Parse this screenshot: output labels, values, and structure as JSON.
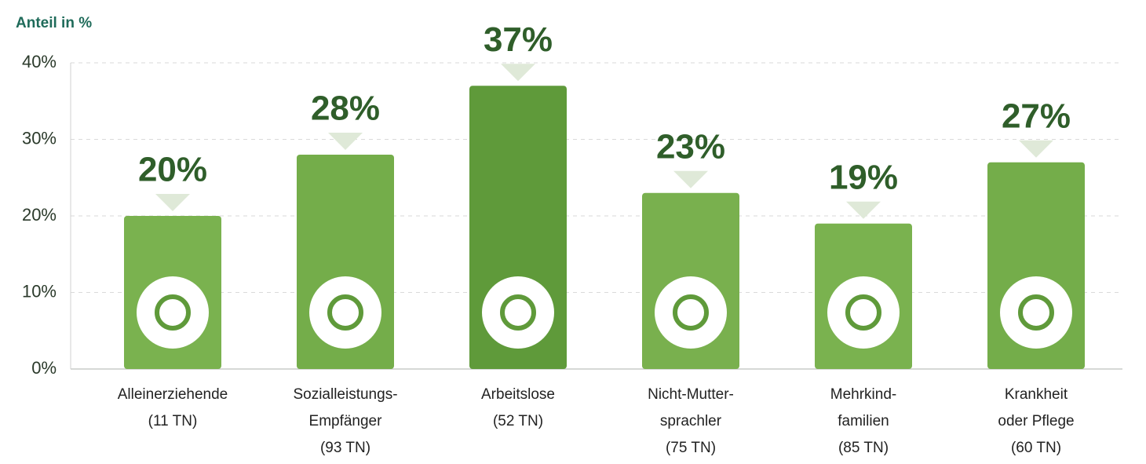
{
  "chart_data": {
    "type": "bar",
    "y_label": "Anteil in %",
    "categories": [
      "Alleinerziehende\n(11 TN)",
      "Sozialleistungs-\nEmpfänger\n(93 TN)",
      "Arbeitslose\n(52 TN)",
      "Nicht-Mutter-\nsprachler\n(75 TN)",
      "Mehrkind-\nfamilien\n(85 TN)",
      "Krankheit\noder Pflege\n(60 TN)"
    ],
    "values": [
      20,
      28,
      37,
      23,
      19,
      27
    ],
    "value_labels": [
      "20%",
      "28%",
      "37%",
      "23%",
      "19%",
      "27%"
    ],
    "colors": [
      "#7ab24f",
      "#74ad4a",
      "#5f9a3a",
      "#79b04e",
      "#7ab24f",
      "#74ad4a"
    ],
    "ylim": [
      0,
      40
    ],
    "yticks": [
      {
        "value": 0,
        "label": "0%"
      },
      {
        "value": 10,
        "label": "10%"
      },
      {
        "value": 20,
        "label": "20%"
      },
      {
        "value": 30,
        "label": "30%"
      },
      {
        "value": 40,
        "label": "40%"
      }
    ],
    "grid": true
  }
}
